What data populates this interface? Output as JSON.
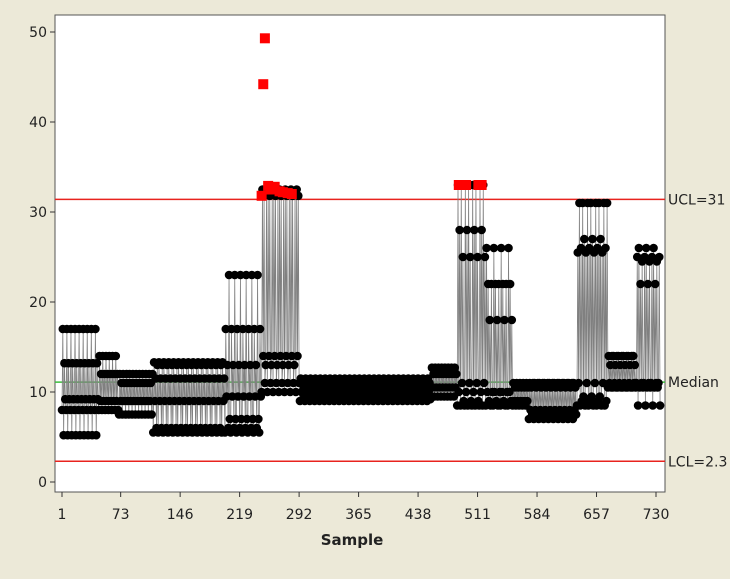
{
  "chart_data": {
    "type": "line",
    "title": "",
    "xlabel": "Sample",
    "ylabel": "",
    "xlim": [
      1,
      740
    ],
    "ylim": [
      0,
      51
    ],
    "x_ticks": [
      1,
      73,
      146,
      219,
      292,
      365,
      438,
      511,
      584,
      657,
      730
    ],
    "x_tick_labels": [
      "1",
      "73",
      "146",
      "219",
      "292",
      "365",
      "438",
      "511",
      "584",
      "657",
      "730"
    ],
    "y_ticks": [
      0,
      10,
      20,
      30,
      40,
      50
    ],
    "y_tick_labels": [
      "0",
      "10",
      "20",
      "30",
      "40",
      "50"
    ],
    "grid": false,
    "reference_lines": [
      {
        "label": "UCL=31",
        "value": 31.4,
        "color": "#e8231e"
      },
      {
        "label": "Median",
        "value": 11.1,
        "color": "#3cbf3c"
      },
      {
        "label": "LCL=2.3",
        "value": 2.3,
        "color": "#e8231e"
      }
    ],
    "colors": {
      "series": "#000000",
      "connector": "#808080",
      "out_of_control": "#ff0000"
    },
    "segments": [
      {
        "start": 1,
        "end": 45,
        "values": [
          8,
          17,
          5.2,
          13.2,
          9.2
        ]
      },
      {
        "start": 46,
        "end": 70,
        "values": [
          8,
          14,
          9,
          12
        ]
      },
      {
        "start": 71,
        "end": 112,
        "values": [
          7.5,
          12,
          9,
          11
        ]
      },
      {
        "start": 113,
        "end": 200,
        "values": [
          5.5,
          13.3,
          9,
          11.5,
          6,
          13
        ]
      },
      {
        "start": 201,
        "end": 245,
        "values": [
          5.5,
          17,
          9.5,
          13,
          6,
          23,
          7
        ]
      },
      {
        "start": 246,
        "end": 292,
        "values": [
          10,
          32.5,
          14,
          31.8,
          11,
          13,
          32
        ]
      },
      {
        "start": 293,
        "end": 453,
        "values": [
          9,
          11.5,
          10,
          11,
          9.2,
          10.5
        ]
      },
      {
        "start": 454,
        "end": 485,
        "values": [
          9.5,
          12.7,
          10.5,
          12
        ]
      },
      {
        "start": 486,
        "end": 520,
        "values": [
          8.5,
          33,
          10,
          28,
          8.5,
          33,
          11,
          25,
          9
        ]
      },
      {
        "start": 521,
        "end": 553,
        "values": [
          8.5,
          26,
          10,
          22,
          9,
          18,
          8.5,
          22,
          10
        ]
      },
      {
        "start": 554,
        "end": 573,
        "values": [
          8.5,
          11,
          9,
          10.5
        ]
      },
      {
        "start": 574,
        "end": 632,
        "values": [
          7,
          11,
          8,
          10.5,
          7.5,
          11
        ]
      },
      {
        "start": 633,
        "end": 670,
        "values": [
          8.5,
          25.5,
          11,
          31,
          8.5,
          26,
          9,
          31,
          9.5,
          27
        ]
      },
      {
        "start": 671,
        "end": 705,
        "values": [
          10.5,
          14,
          11,
          13,
          10.5,
          14
        ]
      },
      {
        "start": 706,
        "end": 735,
        "values": [
          11,
          25,
          8.5,
          26,
          10.5,
          22,
          11,
          24.5,
          10.5
        ]
      }
    ],
    "out_of_control_points": [
      {
        "x": 246,
        "y": 31.8
      },
      {
        "x": 248,
        "y": 44.2
      },
      {
        "x": 250,
        "y": 49.3
      },
      {
        "x": 254,
        "y": 32.9
      },
      {
        "x": 257,
        "y": 32.5
      },
      {
        "x": 262,
        "y": 32.8
      },
      {
        "x": 268,
        "y": 32.3
      },
      {
        "x": 272,
        "y": 32.2
      },
      {
        "x": 278,
        "y": 32.1
      },
      {
        "x": 283,
        "y": 32
      },
      {
        "x": 488,
        "y": 33
      },
      {
        "x": 493,
        "y": 33
      },
      {
        "x": 497,
        "y": 33
      },
      {
        "x": 512,
        "y": 33
      },
      {
        "x": 516,
        "y": 33
      }
    ]
  }
}
